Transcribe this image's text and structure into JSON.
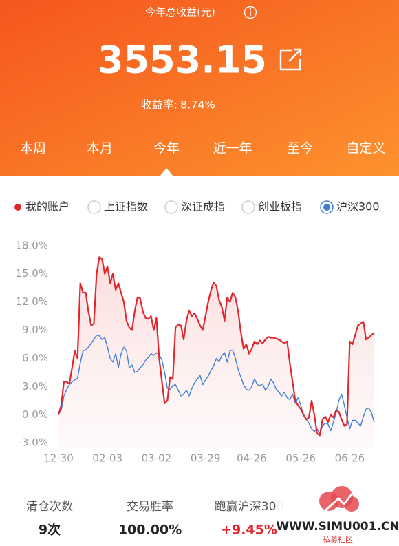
{
  "header": {
    "title": "今年总收益(元)",
    "amount": "3553.15",
    "rate_label": "收益率:",
    "rate": "8.74%"
  },
  "tabs": {
    "items": [
      "本周",
      "本月",
      "今年",
      "近一年",
      "至今",
      "自定义"
    ],
    "selected": 2
  },
  "chart_data": {
    "type": "line",
    "categories": [
      "12-30",
      null,
      null,
      null,
      null,
      null,
      null,
      null,
      null,
      null,
      null,
      null,
      null,
      null,
      null,
      null,
      null,
      null,
      "02-03",
      null,
      null,
      null,
      null,
      null,
      null,
      null,
      null,
      null,
      null,
      null,
      null,
      null,
      null,
      null,
      null,
      null,
      "03-02",
      null,
      null,
      null,
      null,
      null,
      null,
      null,
      null,
      null,
      null,
      null,
      null,
      null,
      null,
      null,
      null,
      null,
      "03-29",
      null,
      null,
      null,
      null,
      null,
      null,
      null,
      null,
      null,
      null,
      null,
      null,
      null,
      null,
      null,
      null,
      "04-26",
      null,
      null,
      null,
      null,
      null,
      null,
      null,
      null,
      null,
      null,
      null,
      null,
      null,
      null,
      null,
      null,
      null,
      "05-26",
      null,
      null,
      null,
      null,
      null,
      null,
      null,
      null,
      null,
      null,
      null,
      null,
      null,
      null,
      null,
      null,
      null,
      "06-26",
      null,
      null,
      null,
      null,
      null,
      null,
      null,
      null,
      null
    ],
    "series": [
      {
        "name": "我的账户",
        "color": "#e3262c",
        "values": [
          0.0,
          1.0,
          3.5,
          3.5,
          3.3,
          5.0,
          6.8,
          6.0,
          14.0,
          13.0,
          13.0,
          11.0,
          9.5,
          9.7,
          15.0,
          16.8,
          16.6,
          15.0,
          15.8,
          14.0,
          15.0,
          13.3,
          14.0,
          13.0,
          12.0,
          10.0,
          9.3,
          9.0,
          11.0,
          12.5,
          12.4,
          11.0,
          10.3,
          10.2,
          10.5,
          9.0,
          10.3,
          6.0,
          3.5,
          1.2,
          1.5,
          4.0,
          3.8,
          9.3,
          9.6,
          9.5,
          8.0,
          10.0,
          11.1,
          10.5,
          10.8,
          10.2,
          9.5,
          9.0,
          10.5,
          12.0,
          13.2,
          14.1,
          13.7,
          12.2,
          11.5,
          10.0,
          12.5,
          12.0,
          13.0,
          12.5,
          11.0,
          8.8,
          7.0,
          7.5,
          6.5,
          7.0,
          7.8,
          7.5,
          7.9,
          7.6,
          8.0,
          8.3,
          8.2,
          8.2,
          8.1,
          8.0,
          7.8,
          7.6,
          7.8,
          5.5,
          3.5,
          1.5,
          1.0,
          0.6,
          0.0,
          -0.5,
          -0.3,
          1.5,
          0.0,
          -2.0,
          -2.2,
          -0.5,
          -0.2,
          -0.8,
          0.0,
          -0.3,
          0.5,
          0.3,
          -0.5,
          -1.2,
          -1.0,
          7.8,
          7.5,
          8.5,
          9.5,
          9.7,
          9.9,
          8.0,
          8.2,
          8.5,
          8.7
        ]
      },
      {
        "benchmark": 3,
        "color": "#3d7fd6",
        "values": [
          0.0,
          0.5,
          2.0,
          2.7,
          3.2,
          3.5,
          3.7,
          3.9,
          5.5,
          6.8,
          6.9,
          7.2,
          7.6,
          8.0,
          8.5,
          8.4,
          8.0,
          8.2,
          7.2,
          6.0,
          5.6,
          6.5,
          5.0,
          6.5,
          7.2,
          6.8,
          5.0,
          5.3,
          4.5,
          4.6,
          5.0,
          5.3,
          5.8,
          6.1,
          6.5,
          6.3,
          6.6,
          6.4,
          5.8,
          4.5,
          2.8,
          2.7,
          3.1,
          3.2,
          2.6,
          2.0,
          2.2,
          2.6,
          2.0,
          2.8,
          3.4,
          3.8,
          4.2,
          3.2,
          3.7,
          4.1,
          4.7,
          5.2,
          6.0,
          5.6,
          6.3,
          6.6,
          5.6,
          6.8,
          6.9,
          6.0,
          4.8,
          4.0,
          3.2,
          2.7,
          2.6,
          3.0,
          3.8,
          3.2,
          3.1,
          3.3,
          2.6,
          3.0,
          3.8,
          3.4,
          2.7,
          2.4,
          2.0,
          2.4,
          1.8,
          1.6,
          2.2,
          1.2,
          1.8,
          1.0,
          0.0,
          -0.5,
          -0.9,
          -1.5,
          -1.8,
          -1.5,
          -2.0,
          -1.2,
          -0.9,
          -1.0,
          -1.7,
          -0.8,
          0.2,
          1.5,
          2.2,
          1.0,
          -0.3,
          -1.5,
          -0.6,
          -0.6,
          -0.9,
          -1.2,
          -0.2,
          0.6,
          0.7,
          0.2,
          -0.8
        ]
      }
    ],
    "benchmarks": [
      "上证指数",
      "深证成指",
      "创业板指",
      "沪深300"
    ],
    "ylim": [
      -3.5,
      18.5
    ],
    "yticks": [
      {
        "value": 18,
        "label": "18.0%"
      },
      {
        "value": 15,
        "label": "15.0%"
      },
      {
        "value": 12,
        "label": "12.0%"
      },
      {
        "value": 9,
        "label": "9.0%"
      },
      {
        "value": 6,
        "label": "6.0%"
      },
      {
        "value": 3,
        "label": "3.0%"
      },
      {
        "value": 0,
        "label": "0.0%"
      },
      {
        "value": -3,
        "label": "-3.0%"
      }
    ],
    "grid": false,
    "area": true
  },
  "stats": [
    {
      "label": "清仓次数",
      "value": "9次"
    },
    {
      "label": "交易胜率",
      "value": "100.00%"
    },
    {
      "label": "跑赢沪深300",
      "value": "+9.45%"
    }
  ],
  "watermark": {
    "site": "WWW.SIMU001.CN",
    "name": "私募社区"
  }
}
